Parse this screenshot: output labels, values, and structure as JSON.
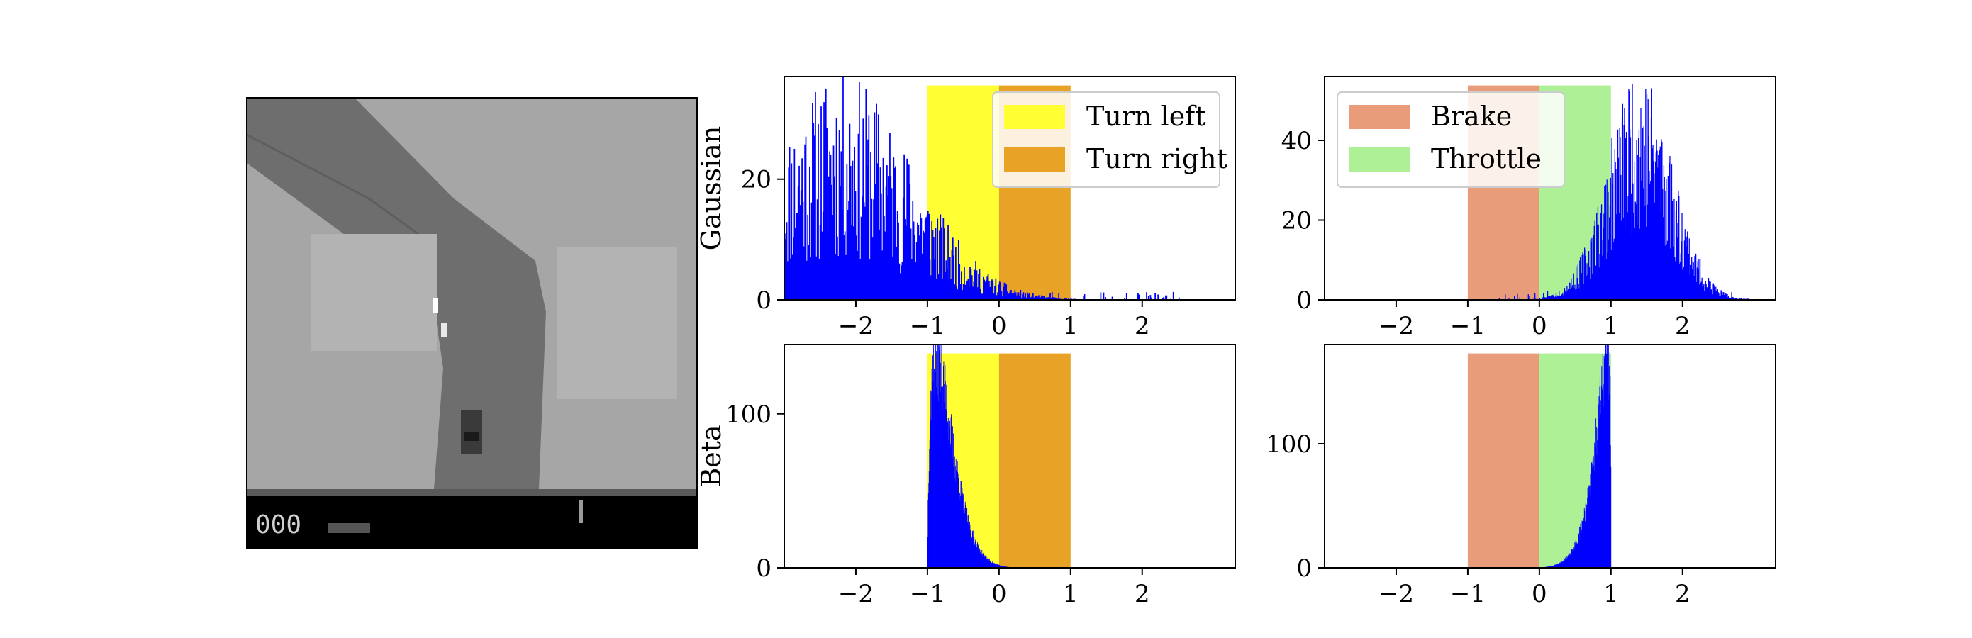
{
  "game_frame": {
    "overlay_text": "000"
  },
  "chart_data": [
    {
      "type": "bar",
      "name": "gaussian-steering",
      "ylabel": "Gaussian",
      "xlim": [
        -3.0,
        3.3
      ],
      "ylim": [
        0,
        37
      ],
      "xticks": [
        "−2",
        "−1",
        "0",
        "1",
        "2"
      ],
      "xtick_values": [
        -2,
        -1,
        0,
        1,
        2
      ],
      "yticks": [
        "0",
        "20"
      ],
      "ytick_values": [
        0,
        20
      ],
      "regions": [
        {
          "label": "Turn left",
          "from": -1,
          "to": 0,
          "color": "#ffff33"
        },
        {
          "label": "Turn right",
          "from": 0,
          "to": 1,
          "color": "#e8a226"
        }
      ],
      "legend": {
        "position": "upper-right",
        "entries": [
          "Turn left",
          "Turn right"
        ]
      },
      "histogram": {
        "dist": "gaussian",
        "mean": -2.2,
        "sd": 1.0,
        "peak": 22,
        "range": [
          -3.0,
          2.6
        ],
        "noise": 0.45,
        "seed": 11
      },
      "bar_color": "#0000ff"
    },
    {
      "type": "bar",
      "name": "gaussian-throttle",
      "ylabel": "",
      "xlim": [
        -3.0,
        3.3
      ],
      "ylim": [
        0,
        56
      ],
      "xticks": [
        "−2",
        "−1",
        "0",
        "1",
        "2"
      ],
      "xtick_values": [
        -2,
        -1,
        0,
        1,
        2
      ],
      "yticks": [
        "0",
        "20",
        "40"
      ],
      "ytick_values": [
        0,
        20,
        40
      ],
      "regions": [
        {
          "label": "Brake",
          "from": -1,
          "to": 0,
          "color": "#e89c7a"
        },
        {
          "label": "Throttle",
          "from": 0,
          "to": 1,
          "color": "#aef095"
        }
      ],
      "legend": {
        "position": "upper-left",
        "entries": [
          "Brake",
          "Throttle"
        ]
      },
      "histogram": {
        "dist": "gaussian",
        "mean": 1.4,
        "sd": 0.45,
        "peak": 38,
        "range": [
          -0.6,
          2.95
        ],
        "noise": 0.35,
        "seed": 23
      },
      "bar_color": "#0000ff"
    },
    {
      "type": "bar",
      "name": "beta-steering",
      "ylabel": "Beta",
      "xlim": [
        -3.0,
        3.3
      ],
      "ylim": [
        0,
        145
      ],
      "xticks": [
        "−2",
        "−1",
        "0",
        "1",
        "2"
      ],
      "xtick_values": [
        -2,
        -1,
        0,
        1,
        2
      ],
      "yticks": [
        "0",
        "100"
      ],
      "ytick_values": [
        0,
        100
      ],
      "regions": [
        {
          "label": "Turn left",
          "from": -1,
          "to": 0,
          "color": "#ffff33"
        },
        {
          "label": "Turn right",
          "from": 0,
          "to": 1,
          "color": "#e8a226"
        }
      ],
      "histogram": {
        "dist": "beta",
        "a": 1.6,
        "b": 10,
        "low": -1,
        "high": 1,
        "peak": 135,
        "noise": 0.12,
        "seed": 37
      },
      "bar_color": "#0000ff"
    },
    {
      "type": "bar",
      "name": "beta-throttle",
      "ylabel": "",
      "xlim": [
        -3.0,
        3.3
      ],
      "ylim": [
        0,
        180
      ],
      "xticks": [
        "−2",
        "−1",
        "0",
        "1",
        "2"
      ],
      "xtick_values": [
        -2,
        -1,
        0,
        1,
        2
      ],
      "yticks": [
        "0",
        "100"
      ],
      "ytick_values": [
        0,
        100
      ],
      "regions": [
        {
          "label": "Brake",
          "from": -1,
          "to": 0,
          "color": "#e89c7a"
        },
        {
          "label": "Throttle",
          "from": 0,
          "to": 1,
          "color": "#aef095"
        }
      ],
      "histogram": {
        "dist": "beta",
        "a": 12,
        "b": 1.3,
        "low": -1,
        "high": 1,
        "peak": 170,
        "noise": 0.12,
        "seed": 53
      },
      "bar_color": "#0000ff"
    }
  ]
}
